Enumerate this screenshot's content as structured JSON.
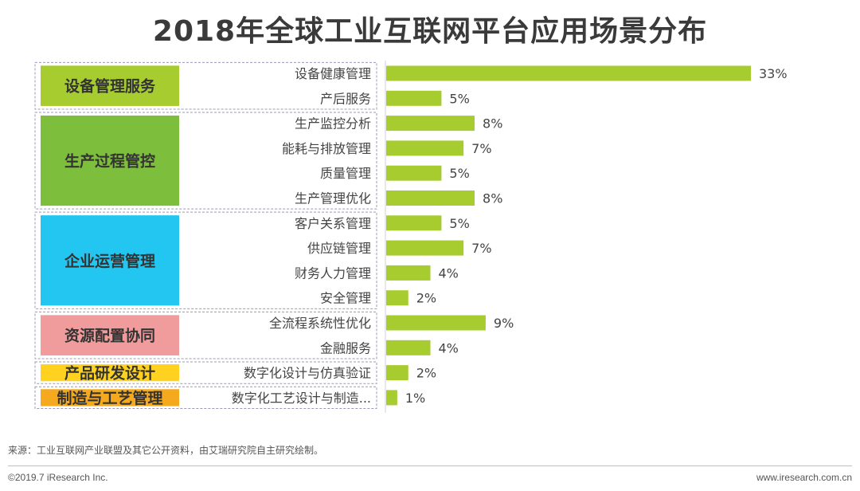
{
  "title": "2018年全球工业互联网平台应用场景分布",
  "chart_data": {
    "type": "bar",
    "orientation": "horizontal",
    "title": "2018年全球工业互联网平台应用场景分布",
    "bar_color": "#a6cc30",
    "groups": [
      {
        "name": "设备管理服务",
        "color": "#a6cc30",
        "items": [
          {
            "label": "设备健康管理",
            "value": 33,
            "value_label": "33%"
          },
          {
            "label": "产后服务",
            "value": 5,
            "value_label": "5%"
          }
        ]
      },
      {
        "name": "生产过程管控",
        "color": "#7dbe3c",
        "items": [
          {
            "label": "生产监控分析",
            "value": 8,
            "value_label": "8%"
          },
          {
            "label": "能耗与排放管理",
            "value": 7,
            "value_label": "7%"
          },
          {
            "label": "质量管理",
            "value": 5,
            "value_label": "5%"
          },
          {
            "label": "生产管理优化",
            "value": 8,
            "value_label": "8%"
          }
        ]
      },
      {
        "name": "企业运营管理",
        "color": "#22c6f0",
        "items": [
          {
            "label": "客户关系管理",
            "value": 5,
            "value_label": "5%"
          },
          {
            "label": "供应链管理",
            "value": 7,
            "value_label": "7%"
          },
          {
            "label": "财务人力管理",
            "value": 4,
            "value_label": "4%"
          },
          {
            "label": "安全管理",
            "value": 2,
            "value_label": "2%"
          }
        ]
      },
      {
        "name": "资源配置协同",
        "color": "#f19c9c",
        "items": [
          {
            "label": "全流程系统性优化",
            "value": 9,
            "value_label": "9%"
          },
          {
            "label": "金融服务",
            "value": 4,
            "value_label": "4%"
          }
        ]
      },
      {
        "name": "产品研发设计",
        "color": "#ffd21f",
        "items": [
          {
            "label": "数字化设计与仿真验证",
            "value": 2,
            "value_label": "2%"
          }
        ]
      },
      {
        "name": "制造与工艺管理",
        "color": "#f5a91f",
        "items": [
          {
            "label": "数字化工艺设计与制造...",
            "value": 1,
            "value_label": "1%"
          }
        ]
      }
    ],
    "xlim": [
      0,
      33
    ]
  },
  "footer": {
    "source": "来源：工业互联网产业联盟及其它公开资料，由艾瑞研究院自主研究绘制。",
    "copyright": "©2019.7 iResearch Inc.",
    "site": "www.iresearch.com.cn"
  }
}
